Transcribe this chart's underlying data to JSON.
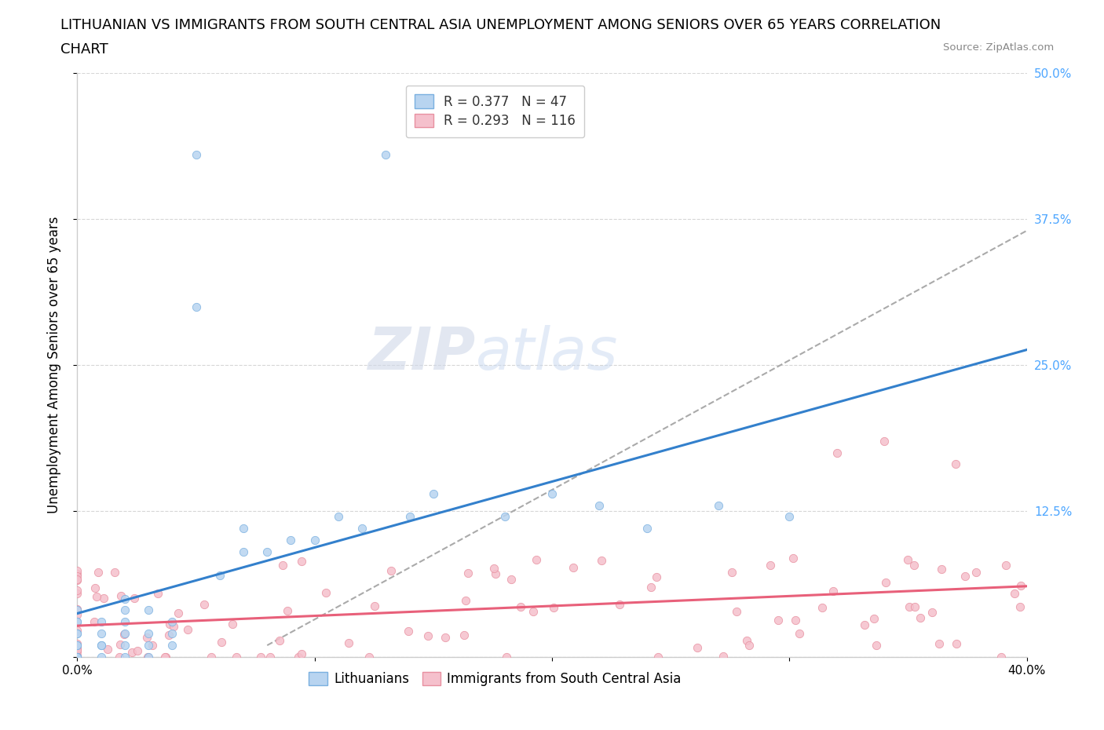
{
  "title_line1": "LITHUANIAN VS IMMIGRANTS FROM SOUTH CENTRAL ASIA UNEMPLOYMENT AMONG SENIORS OVER 65 YEARS CORRELATION",
  "title_line2": "CHART",
  "source": "Source: ZipAtlas.com",
  "ylabel": "Unemployment Among Seniors over 65 years",
  "xlim": [
    0.0,
    0.4
  ],
  "ylim": [
    0.0,
    0.5
  ],
  "ytick_labels": [
    "",
    "12.5%",
    "25.0%",
    "37.5%",
    "50.0%"
  ],
  "xtick_labels": [
    "0.0%",
    "",
    "",
    "",
    "40.0%"
  ],
  "series": [
    {
      "name": "Lithuanians",
      "R": 0.377,
      "N": 47,
      "dot_color": "#b8d4f0",
      "dot_edge_color": "#7ab0e0",
      "line_color": "#3380cc"
    },
    {
      "name": "Immigrants from South Central Asia",
      "R": 0.293,
      "N": 116,
      "dot_color": "#f5c0cc",
      "dot_edge_color": "#e890a0",
      "line_color": "#e8607a"
    }
  ],
  "watermark_text": "ZIP",
  "watermark_text2": "atlas",
  "background_color": "#ffffff",
  "grid_color": "#cccccc",
  "title_fontsize": 13,
  "axis_label_fontsize": 12,
  "tick_fontsize": 11,
  "legend_fontsize": 12,
  "right_ytick_color": "#4da6ff"
}
